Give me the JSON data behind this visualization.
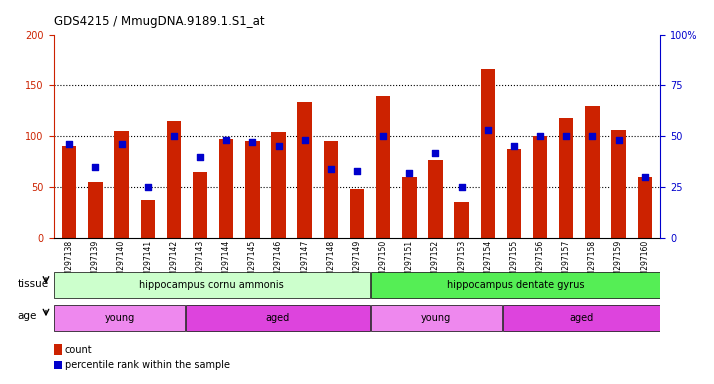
{
  "title": "GDS4215 / MmugDNA.9189.1.S1_at",
  "samples": [
    "GSM297138",
    "GSM297139",
    "GSM297140",
    "GSM297141",
    "GSM297142",
    "GSM297143",
    "GSM297144",
    "GSM297145",
    "GSM297146",
    "GSM297147",
    "GSM297148",
    "GSM297149",
    "GSM297150",
    "GSM297151",
    "GSM297152",
    "GSM297153",
    "GSM297154",
    "GSM297155",
    "GSM297156",
    "GSM297157",
    "GSM297158",
    "GSM297159",
    "GSM297160"
  ],
  "counts": [
    90,
    55,
    105,
    37,
    115,
    65,
    97,
    95,
    104,
    134,
    95,
    48,
    140,
    60,
    77,
    35,
    166,
    88,
    100,
    118,
    130,
    106,
    60
  ],
  "percentiles": [
    46,
    35,
    46,
    25,
    50,
    40,
    48,
    47,
    45,
    48,
    34,
    33,
    50,
    32,
    42,
    25,
    53,
    45,
    50,
    50,
    50,
    48,
    30
  ],
  "bar_color": "#cc2200",
  "dot_color": "#0000cc",
  "left_ylim": [
    0,
    200
  ],
  "right_ylim": [
    0,
    100
  ],
  "left_yticks": [
    0,
    50,
    100,
    150,
    200
  ],
  "right_yticks": [
    0,
    25,
    50,
    75,
    100
  ],
  "right_yticklabels": [
    "0",
    "25",
    "50",
    "75",
    "100%"
  ],
  "tissue_groups": [
    {
      "label": "hippocampus cornu ammonis",
      "start": 0,
      "end": 12,
      "color": "#ccffcc"
    },
    {
      "label": "hippocampus dentate gyrus",
      "start": 12,
      "end": 23,
      "color": "#55ee55"
    }
  ],
  "age_groups": [
    {
      "label": "young",
      "start": 0,
      "end": 5,
      "color": "#ee88ee"
    },
    {
      "label": "aged",
      "start": 5,
      "end": 12,
      "color": "#dd44dd"
    },
    {
      "label": "young",
      "start": 12,
      "end": 17,
      "color": "#ee88ee"
    },
    {
      "label": "aged",
      "start": 17,
      "end": 23,
      "color": "#dd44dd"
    }
  ],
  "bg_color": "#ffffff",
  "plot_bg_color": "#ffffff",
  "tissue_label": "tissue",
  "age_label": "age",
  "legend_count_label": "count",
  "legend_pct_label": "percentile rank within the sample"
}
